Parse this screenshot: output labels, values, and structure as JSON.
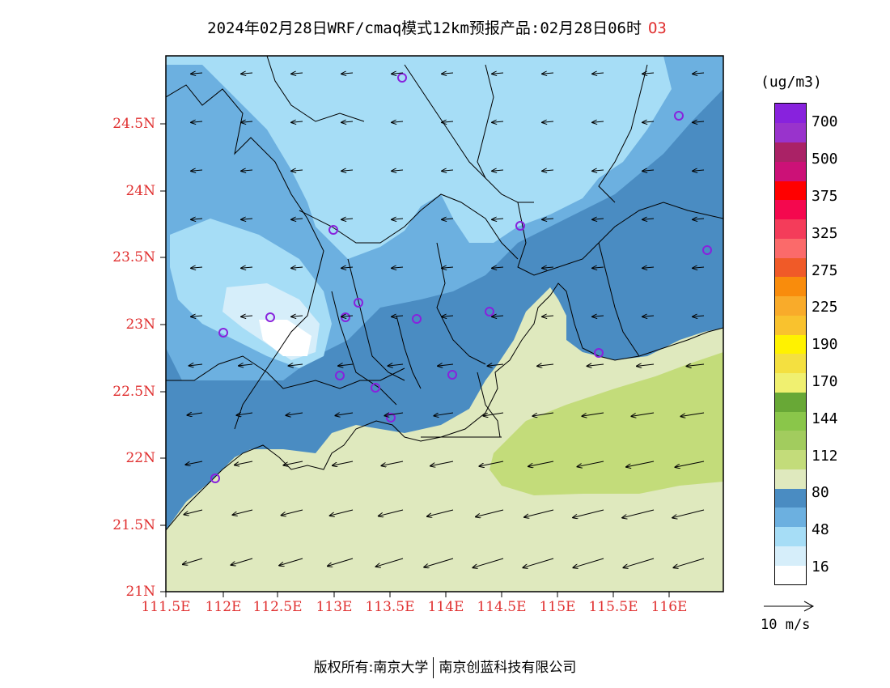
{
  "title": {
    "text": "2024年02月28日WRF/cmaq模式12km预报产品:02月28日06时",
    "species": "O3"
  },
  "map": {
    "lat_ticks": [
      "24.5N",
      "24N",
      "23.5N",
      "23N",
      "22.5N",
      "22N",
      "21.5N",
      "21N"
    ],
    "lon_ticks": [
      "111.5E",
      "112E",
      "112.5E",
      "113E",
      "113.5E",
      "114E",
      "114.5E",
      "115E",
      "115.5E",
      "116E"
    ],
    "region": "Guangdong / Pearl River Delta",
    "wind_direction": "mostly east-northeasterly (arrows point west / southwest)"
  },
  "colorbar": {
    "units": "(ug/m3)",
    "labels": [
      "700",
      "500",
      "375",
      "325",
      "275",
      "225",
      "190",
      "170",
      "144",
      "112",
      "80",
      "48",
      "16"
    ],
    "colors": [
      "#ffffff",
      "#d6eefa",
      "#a6ddf6",
      "#6cb0e0",
      "#4a8cc2",
      "#dfe9be",
      "#c3dc7a",
      "#a2cc5e",
      "#8ac64a",
      "#68a836",
      "#f0f070",
      "#f4e040",
      "#fff200",
      "#f9c22e",
      "#f9ab2a",
      "#f98c0c",
      "#f05a28",
      "#fb6a6a",
      "#f43c5a",
      "#f4084e",
      "#ff0000",
      "#cc1177",
      "#aa2266",
      "#9933cc",
      "#8822dd"
    ]
  },
  "reference_vector": {
    "label": "10 m/s"
  },
  "footer": {
    "left": "版权所有:南京大学",
    "right": "南京创蓝科技有限公司"
  }
}
